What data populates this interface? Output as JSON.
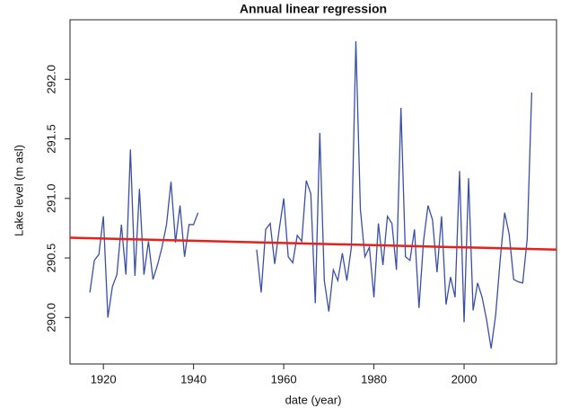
{
  "chart_data": {
    "type": "line",
    "title": "Annual linear regression",
    "x_label": "date (year)",
    "y_label": "Lake level (m asl)",
    "x": [
      1917,
      1918,
      1919,
      1920,
      1921,
      1922,
      1923,
      1924,
      1925,
      1926,
      1927,
      1928,
      1929,
      1930,
      1931,
      1932,
      1933,
      1934,
      1935,
      1936,
      1937,
      1938,
      1939,
      1940,
      1941,
      1942,
      1943,
      1944,
      1945,
      1946,
      1947,
      1948,
      1949,
      1950,
      1951,
      1952,
      1953,
      1954,
      1955,
      1956,
      1957,
      1958,
      1959,
      1960,
      1961,
      1962,
      1963,
      1964,
      1965,
      1966,
      1967,
      1968,
      1969,
      1970,
      1971,
      1972,
      1973,
      1974,
      1975,
      1976,
      1977,
      1978,
      1979,
      1980,
      1981,
      1982,
      1983,
      1984,
      1985,
      1986,
      1987,
      1988,
      1989,
      1990,
      1991,
      1992,
      1993,
      1994,
      1995,
      1996,
      1997,
      1998,
      1999,
      2000,
      2001,
      2002,
      2003,
      2004,
      2005,
      2006,
      2007,
      2008,
      2009,
      2010,
      2011,
      2012,
      2013,
      2014,
      2015
    ],
    "series": [
      {
        "color": "#3a4fa8",
        "values": [
          290.21,
          290.48,
          290.53,
          290.85,
          290.0,
          290.26,
          290.36,
          290.78,
          290.36,
          291.41,
          290.35,
          291.08,
          290.36,
          290.64,
          290.32,
          290.44,
          290.59,
          290.78,
          291.14,
          290.63,
          290.94,
          290.51,
          290.78,
          290.78,
          290.88,
          null,
          null,
          null,
          null,
          null,
          null,
          null,
          null,
          null,
          null,
          null,
          null,
          290.57,
          290.21,
          290.74,
          290.79,
          290.45,
          290.74,
          291.0,
          290.51,
          290.46,
          290.69,
          290.64,
          291.15,
          291.04,
          290.12,
          291.55,
          290.31,
          290.05,
          290.4,
          290.31,
          290.54,
          290.31,
          290.59,
          292.32,
          290.91,
          290.51,
          290.59,
          290.17,
          290.79,
          290.44,
          290.85,
          290.79,
          290.4,
          291.76,
          290.51,
          290.48,
          290.74,
          290.08,
          290.64,
          290.94,
          290.82,
          290.38,
          290.85,
          290.11,
          290.34,
          290.17,
          291.23,
          289.96,
          291.17,
          290.06,
          290.29,
          290.17,
          289.98,
          289.74,
          290.02,
          290.48,
          290.88,
          290.7,
          290.32,
          290.3,
          290.29,
          290.66,
          291.89
        ]
      },
      {
        "color": "#e8201a",
        "x": [
          1912.6,
          2020.5
        ],
        "values": [
          290.67,
          290.57
        ]
      }
    ],
    "xlim": [
      1912.6,
      2020.5
    ],
    "ylim": [
      289.61,
      292.5
    ],
    "xticks": [
      1920,
      1940,
      1960,
      1980,
      2000
    ],
    "yticks": [
      {
        "value": 290,
        "label": "290.0"
      },
      {
        "value": 290.5,
        "label": "290.5"
      },
      {
        "value": 291,
        "label": "291.0"
      },
      {
        "value": 291.5,
        "label": "291.5"
      },
      {
        "value": 292,
        "label": "292.0"
      }
    ]
  }
}
